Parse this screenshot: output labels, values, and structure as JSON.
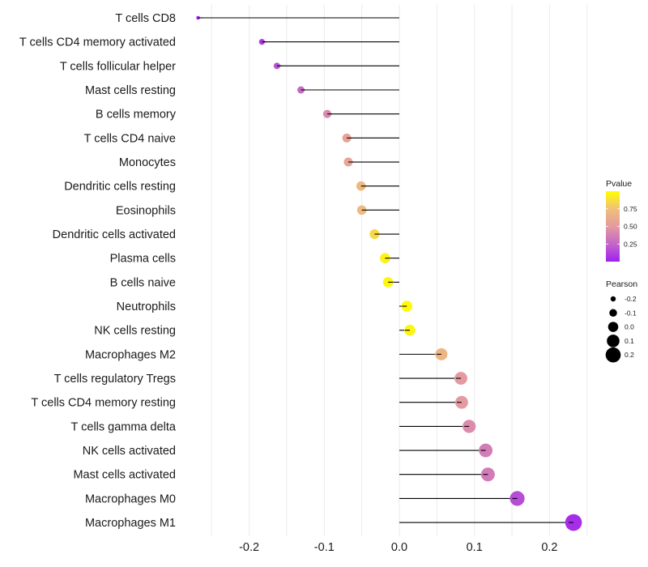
{
  "chart_data": {
    "type": "lollipop",
    "title": "",
    "xlabel": "",
    "ylabel": "",
    "xlim": [
      -0.25,
      0.25
    ],
    "x_ticks": [
      -0.2,
      -0.1,
      0.0,
      0.1,
      0.2
    ],
    "x_tick_labels": [
      "-0.2",
      "-0.1",
      "0.0",
      "0.1",
      "0.2"
    ],
    "grid": true,
    "categories": [
      "T cells CD8",
      "T cells CD4 memory activated",
      "T cells follicular helper",
      "Mast cells resting",
      "B cells memory",
      "T cells CD4 naive",
      "Monocytes",
      "Dendritic cells resting",
      "Eosinophils",
      "Dendritic cells activated",
      "Plasma cells",
      "B cells naive",
      "Neutrophils",
      "NK cells resting",
      "Macrophages M2",
      "T cells regulatory  Tregs ",
      "T cells CD4 memory resting",
      "T cells gamma delta",
      "NK cells activated",
      "Mast cells activated",
      "Macrophages M0",
      "Macrophages M1"
    ],
    "pearson": [
      -0.268,
      -0.183,
      -0.163,
      -0.131,
      -0.096,
      -0.07,
      -0.068,
      -0.051,
      -0.05,
      -0.033,
      -0.019,
      -0.015,
      0.01,
      0.014,
      0.056,
      0.082,
      0.083,
      0.093,
      0.115,
      0.118,
      0.157,
      0.232
    ],
    "pvalue": [
      0.02,
      0.1,
      0.18,
      0.27,
      0.42,
      0.55,
      0.57,
      0.7,
      0.71,
      0.85,
      0.95,
      0.97,
      0.98,
      0.96,
      0.68,
      0.5,
      0.5,
      0.43,
      0.36,
      0.35,
      0.16,
      0.05
    ],
    "color_legend": {
      "title": "Pvalue",
      "low_color": "#A020F0",
      "high_color": "#FFFF00",
      "range": [
        0.0,
        1.0
      ],
      "ticks": [
        0.25,
        0.5,
        0.75
      ],
      "tick_labels": [
        "0.25",
        "0.50",
        "0.75"
      ],
      "placement": "right"
    },
    "size_legend": {
      "title": "Pearson",
      "values": [
        -0.2,
        -0.1,
        0.0,
        0.1,
        0.2
      ],
      "labels": [
        "-0.2",
        "-0.1",
        "0.0",
        "0.1",
        "0.2"
      ],
      "placement": "right"
    }
  }
}
